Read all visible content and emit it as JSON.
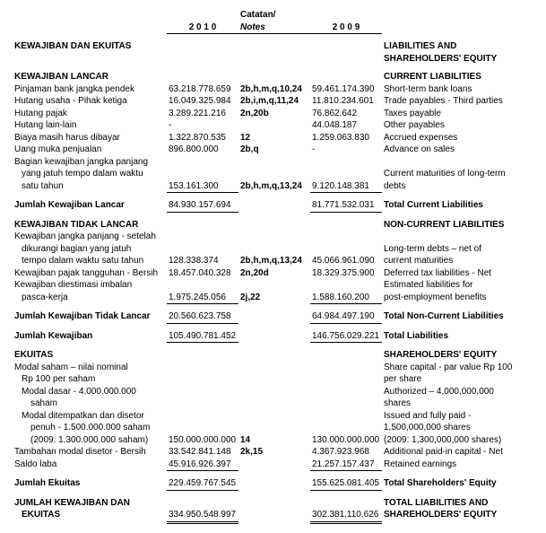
{
  "header": {
    "notes_id": "Catatan/",
    "notes_en": "Notes",
    "y2010": "2 0 1 0",
    "y2009": "2 0 0 9"
  },
  "section": {
    "liabEq_id": "KEWAJIBAN DAN EKUITAS",
    "liabEq_en1": "LIABILITIES AND",
    "liabEq_en2": "SHAREHOLDERS' EQUITY",
    "curLiab_id": "KEWAJIBAN LANCAR",
    "curLiab_en": "CURRENT LIABILITIES",
    "nonCurLiab_id": "KEWAJIBAN TIDAK LANCAR",
    "nonCurLiab_en": "NON-CURRENT LIABILITIES",
    "equity_id": "EKUITAS",
    "equity_en": "SHAREHOLDERS' EQUITY"
  },
  "rows": {
    "stbl_id": "Pinjaman bank jangka pendek",
    "stbl_10": "63.218.778.659",
    "stbl_nt": "2b,h,m,q,10,24",
    "stbl_09": "59.461.174.390",
    "stbl_en": "Short-term bank loans",
    "tp_id": "Hutang usaha - Pihak ketiga",
    "tp_10": "16.049.325.984",
    "tp_nt": "2b,i,m,q,11,24",
    "tp_09": "11.810.234.601",
    "tp_en": "Trade payables - Third parties",
    "tax_id": "Hutang pajak",
    "tax_10": "3.289.221.216",
    "tax_nt": "2n,20b",
    "tax_09": "76.862.642",
    "tax_en": "Taxes payable",
    "oth_id": "Hutang lain-lain",
    "oth_10": "-",
    "oth_09": "44.048.187",
    "oth_en": "Other payables",
    "acc_id": "Biaya masih harus dibayar",
    "acc_10": "1.322.870.535",
    "acc_nt": "12",
    "acc_09": "1.259.063.830",
    "acc_en": "Accrued expenses",
    "adv_id": "Uang muka penjualan",
    "adv_10": "896.800.000",
    "adv_nt": "2b,q",
    "adv_09": "-",
    "adv_en": "Advance on sales",
    "curmat_id1": "Bagian kewajiban jangka panjang",
    "curmat_id2": "yang jatuh tempo dalam waktu",
    "curmat_id3": "satu tahun",
    "curmat_10": "153.161.300",
    "curmat_nt": "2b,h,m,q,13,24",
    "curmat_09": "9.120.148.381",
    "curmat_en1": "Current maturities of long-term",
    "curmat_en2": "debts",
    "tcl_id": "Jumlah Kewajiban Lancar",
    "tcl_10": "84.930.157.694",
    "tcl_09": "81.771.532.031",
    "tcl_en": "Total Current Liabilities",
    "ltd_id1": "Kewajiban jangka panjang - setelah",
    "ltd_id2": "dikurangi bagian yang jatuh",
    "ltd_id3": "tempo dalam waktu satu tahun",
    "ltd_10": "128.338.374",
    "ltd_nt": "2b,h,m,q,13,24",
    "ltd_09": "45.066.961.090",
    "ltd_en1": "Long-term debts – net of",
    "ltd_en2": "current maturities",
    "dtl_id": "Kewajiban pajak tangguhan - Bersih",
    "dtl_10": "18.457.040.328",
    "dtl_nt": "2n,20d",
    "dtl_09": "18.329.375.900",
    "dtl_en": "Deferred tax liabilities - Net",
    "pe_id1": "Kewajiban diestimasi imbalan",
    "pe_id2": "pasca-kerja",
    "pe_10": "1.975.245.056",
    "pe_nt": "2j,22",
    "pe_09": "1.588.160.200",
    "pe_en1": "Estimated liabilities for",
    "pe_en2": "post-employment benefits",
    "tncl_id": "Jumlah Kewajiban Tidak Lancar",
    "tncl_10": "20.560.623.758",
    "tncl_09": "64.984.497.190",
    "tncl_en": "Total Non-Current Liabilities",
    "tl_id": "Jumlah Kewajiban",
    "tl_10": "105.490.781.452",
    "tl_09": "146.756.029.221",
    "tl_en": "Total Liabilities",
    "sc_id1": "Modal saham – nilai nominal",
    "sc_id2": "Rp 100 per saham",
    "sc_id3": "Modal dasar - 4.000.000.000",
    "sc_id4": "saham",
    "sc_id5": "Modal ditempatkan dan disetor",
    "sc_id6": "penuh - 1.500.000.000 saham",
    "sc_id7": "(2009: 1.300.000.000 saham)",
    "sc_en1": "Share capital  - par value Rp 100",
    "sc_en2": "per share",
    "sc_en3": "Authorized – 4,000,000,000",
    "sc_en4": "shares",
    "sc_en5": "Issued and fully paid -",
    "sc_en6": "1,500,000,000 shares",
    "sc_en7": "(2009: 1,300,000,000 shares)",
    "sc_10": "150.000.000.000",
    "sc_nt": "14",
    "sc_09": "130.000.000.000",
    "apic_id": "Tambahan modal disetor - Bersih",
    "apic_10": "33.542.841.148",
    "apic_nt": "2k,15",
    "apic_09": "4.367.923.968",
    "apic_en": "Additional paid-in capital - Net",
    "re_id": "Saldo laba",
    "re_10": "45.916.926.397",
    "re_09": "21.257.157.437",
    "re_en": "Retained earnings",
    "teq_id": "Jumlah Ekuitas",
    "teq_10": "229.459.767.545",
    "teq_09": "155.625.081.405",
    "teq_en": "Total Shareholders' Equity",
    "tle_id1": "JUMLAH KEWAJIBAN DAN",
    "tle_id2": "EKUITAS",
    "tle_10": "334.950.548.997",
    "tle_09": "302.381.110.626",
    "tle_en1": "TOTAL LIABILITIES AND",
    "tle_en2": "SHAREHOLDERS' EQUITY"
  }
}
